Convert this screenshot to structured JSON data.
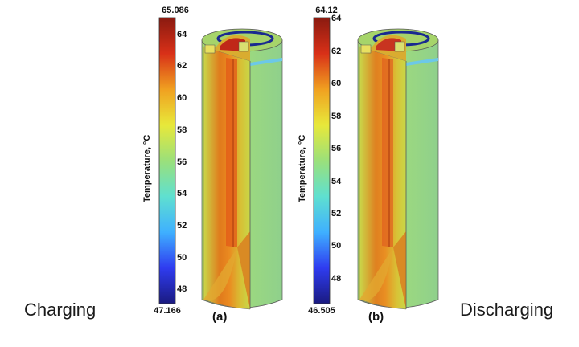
{
  "labels": {
    "left": "Charging",
    "right": "Discharging"
  },
  "panels": [
    {
      "id": "a",
      "label": "(a)",
      "colorbar": {
        "max_label": "65.086",
        "min_label": "47.166",
        "min": 47.166,
        "max": 65.086,
        "title": "Temperature, °C",
        "ticks": [
          48,
          50,
          52,
          54,
          56,
          58,
          60,
          62,
          64
        ]
      }
    },
    {
      "id": "b",
      "label": "(b)",
      "colorbar": {
        "max_label": "64.12",
        "min_label": "46.505",
        "min": 46.505,
        "max": 64.12,
        "title": "Temperature, °C",
        "ticks": [
          48,
          50,
          52,
          54,
          56,
          58,
          60,
          62,
          64
        ]
      }
    }
  ],
  "colormap": {
    "stops": [
      "#1a1a80",
      "#2f3cf0",
      "#3fb0ff",
      "#5fe0d0",
      "#9be07a",
      "#e8e83a",
      "#f0a020",
      "#d83018",
      "#8a1a10"
    ]
  }
}
